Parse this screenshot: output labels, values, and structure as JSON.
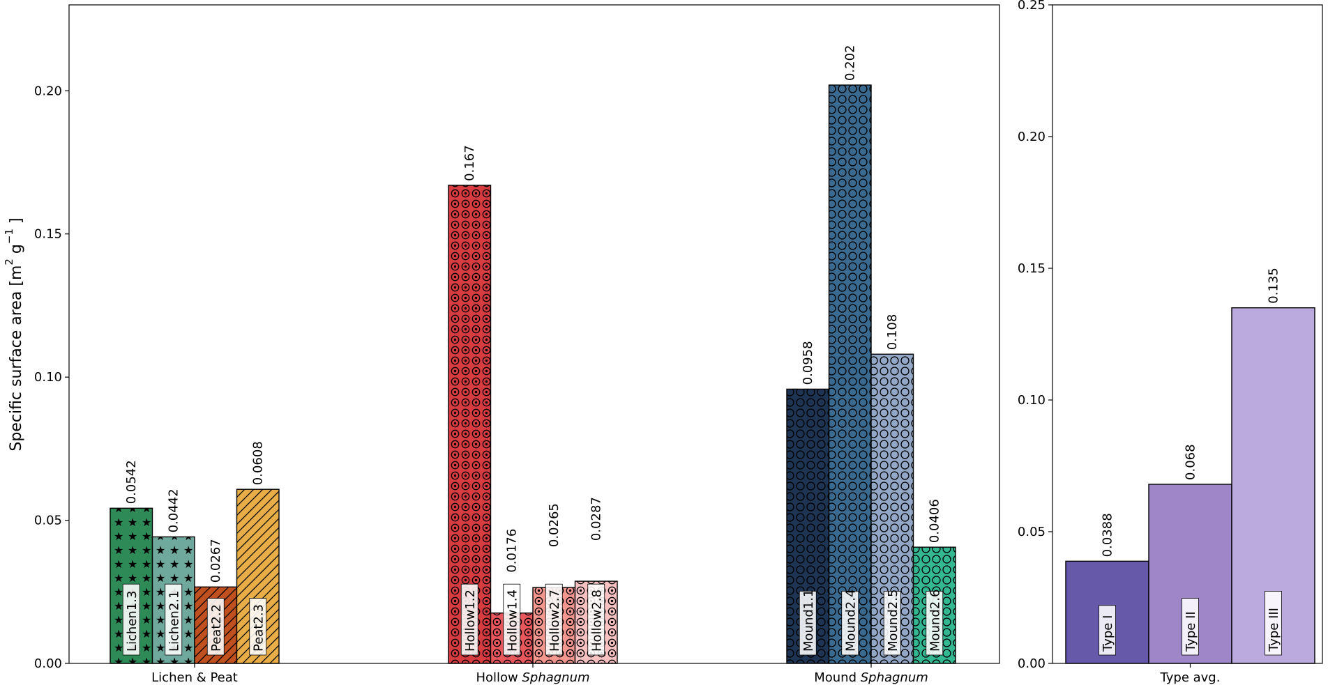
{
  "chart_data": [
    {
      "type": "bar",
      "ylabel": "Specific surface area [m",
      "ylabel_units": {
        "sup1": "2",
        "g": "g",
        "sup2": "−1",
        "close": "]"
      },
      "ylim": [
        0,
        0.23
      ],
      "yticks": [
        "0.00",
        "0.05",
        "0.10",
        "0.15",
        "0.20"
      ],
      "grid": false,
      "groups": [
        {
          "label_parts": [
            {
              "text": "Lichen & Peat",
              "italic": false
            }
          ],
          "bars": [
            {
              "name": "Lichen1.3",
              "value": 0.0542,
              "label": "0.0542",
              "color": "#2e8b57",
              "hatch": "stars"
            },
            {
              "name": "Lichen2.1",
              "value": 0.0442,
              "label": "0.0442",
              "color": "#6fa89c",
              "hatch": "stars"
            },
            {
              "name": "Peat2.2",
              "value": 0.0267,
              "label": "0.0267",
              "color": "#c0501f",
              "hatch": "diag"
            },
            {
              "name": "Peat2.3",
              "value": 0.0608,
              "label": "0.0608",
              "color": "#e8ad46",
              "hatch": "diag"
            }
          ]
        },
        {
          "label_parts": [
            {
              "text": "Hollow ",
              "italic": false
            },
            {
              "text": "Sphagnum",
              "italic": true
            }
          ],
          "bars": [
            {
              "name": "Hollow1.2",
              "value": 0.167,
              "label": "0.167",
              "color": "#d63c40",
              "hatch": "dotring"
            },
            {
              "name": "Hollow1.4",
              "value": 0.0176,
              "label": "0.0176",
              "color": "#e8575c",
              "hatch": "dotring"
            },
            {
              "name": "Hollow2.7",
              "value": 0.0265,
              "label": "0.0265",
              "color": "#f4978f",
              "hatch": "dotring"
            },
            {
              "name": "Hollow2.8",
              "value": 0.0287,
              "label": "0.0287",
              "color": "#f7c1c1",
              "hatch": "dotring"
            }
          ]
        },
        {
          "label_parts": [
            {
              "text": "Mound ",
              "italic": false
            },
            {
              "text": "Sphagnum",
              "italic": true
            }
          ],
          "bars": [
            {
              "name": "Mound1.1",
              "value": 0.0958,
              "label": "0.0958",
              "color": "#1e3453",
              "hatch": "ring"
            },
            {
              "name": "Mound2.4",
              "value": 0.202,
              "label": "0.202",
              "color": "#3a6a8f",
              "hatch": "ring"
            },
            {
              "name": "Mound2.5",
              "value": 0.108,
              "label": "0.108",
              "color": "#92a8c6",
              "hatch": "ring"
            },
            {
              "name": "Mound2.6",
              "value": 0.0406,
              "label": "0.0406",
              "color": "#34b892",
              "hatch": "ring"
            }
          ]
        }
      ]
    },
    {
      "type": "bar",
      "ylim": [
        0,
        0.25
      ],
      "yticks": [
        "0.00",
        "0.05",
        "0.10",
        "0.15",
        "0.20",
        "0.25"
      ],
      "grid": false,
      "groups": [
        {
          "label_parts": [
            {
              "text": "Type avg.",
              "italic": false
            }
          ],
          "bars": [
            {
              "name": "Type I",
              "value": 0.0388,
              "label": "0.0388",
              "color": "#6659a9",
              "hatch": "none"
            },
            {
              "name": "Type II",
              "value": 0.068,
              "label": "0.068",
              "color": "#9e86c8",
              "hatch": "none"
            },
            {
              "name": "Type III",
              "value": 0.135,
              "label": "0.135",
              "color": "#bbaadd",
              "hatch": "none"
            }
          ]
        }
      ]
    }
  ]
}
